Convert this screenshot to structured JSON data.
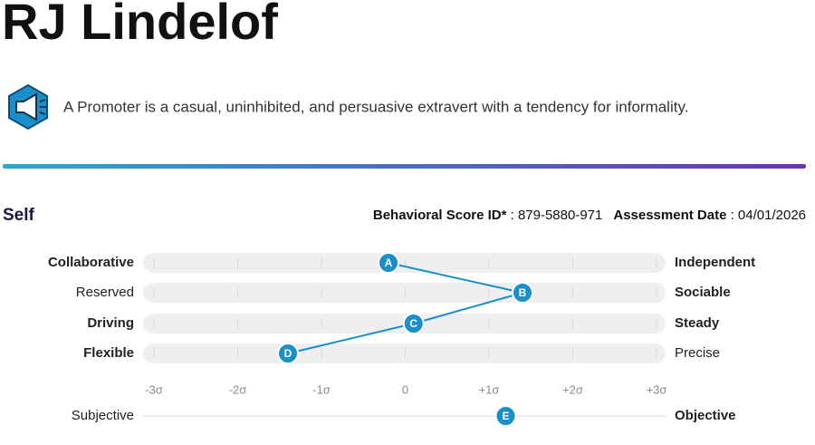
{
  "header": {
    "name": "RJ Lindelof",
    "description": "A Promoter is a casual, uninhibited, and persuasive extravert with a tendency for informality."
  },
  "section": {
    "title": "Self",
    "score_label": "Behavioral Score ID*",
    "score_value": " : 879-5880-971",
    "date_label": "Assessment Date",
    "date_value": " : 04/01/2026"
  },
  "chart_data": {
    "type": "profile",
    "color": "#1a8fc9",
    "xlim": [
      -3,
      3
    ],
    "xticks": [
      {
        "value": -3,
        "label": "-3σ"
      },
      {
        "value": -2,
        "label": "-2σ"
      },
      {
        "value": -1,
        "label": "-1σ"
      },
      0,
      {
        "value": 1,
        "label": "+1σ"
      },
      {
        "value": 2,
        "label": "+2σ"
      },
      {
        "value": 3,
        "label": "+3σ"
      }
    ],
    "categories": [
      {
        "left": "Collaborative",
        "right": "Independent",
        "left_bold": true,
        "right_bold": true,
        "marker": "A"
      },
      {
        "left": "Reserved",
        "right": "Sociable",
        "left_bold": false,
        "right_bold": true,
        "marker": "B"
      },
      {
        "left": "Driving",
        "right": "Steady",
        "left_bold": true,
        "right_bold": true,
        "marker": "C"
      },
      {
        "left": "Flexible",
        "right": "Precise",
        "left_bold": true,
        "right_bold": false,
        "marker": "D"
      }
    ],
    "values": [
      -0.2,
      1.4,
      0.1,
      -1.4
    ],
    "extra": {
      "left": "Subjective",
      "right": "Objective",
      "left_bold": false,
      "right_bold": true,
      "marker": "E",
      "value": 1.2
    }
  }
}
